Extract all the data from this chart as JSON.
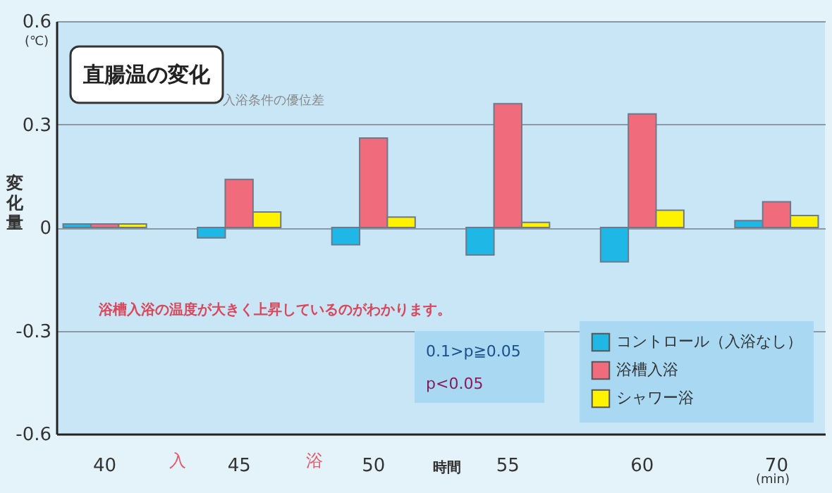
{
  "chart_data": {
    "type": "bar",
    "title": "直腸温の変化",
    "ylabel": "変化量",
    "xlabel": "時間",
    "categories": [
      "40",
      "45",
      "50",
      "55",
      "60",
      "70"
    ],
    "series": [
      {
        "name": "コントロール（入浴なし）",
        "color": "#1fb8e6",
        "values": [
          0.01,
          -0.03,
          -0.05,
          -0.08,
          -0.1,
          0.02
        ]
      },
      {
        "name": "浴槽入浴",
        "color": "#f06b7b",
        "values": [
          0.01,
          0.14,
          0.26,
          0.36,
          0.33,
          0.075
        ]
      },
      {
        "name": "シャワー浴",
        "color": "#fff200",
        "values": [
          0.01,
          0.045,
          0.03,
          0.015,
          0.05,
          0.035
        ]
      }
    ],
    "ylim": [
      -0.6,
      0.6
    ],
    "yticks": [
      -0.6,
      -0.3,
      0,
      0.3,
      0.6
    ],
    "grid": "y",
    "legend": "bottom right",
    "annotations": [
      "(℃)",
      "入浴条件の優位差",
      "入",
      "浴",
      "(min)",
      "浴槽入浴の温度が大きく上昇しているのがわかります。",
      "0.1>p≧0.05",
      "p<0.05"
    ]
  }
}
